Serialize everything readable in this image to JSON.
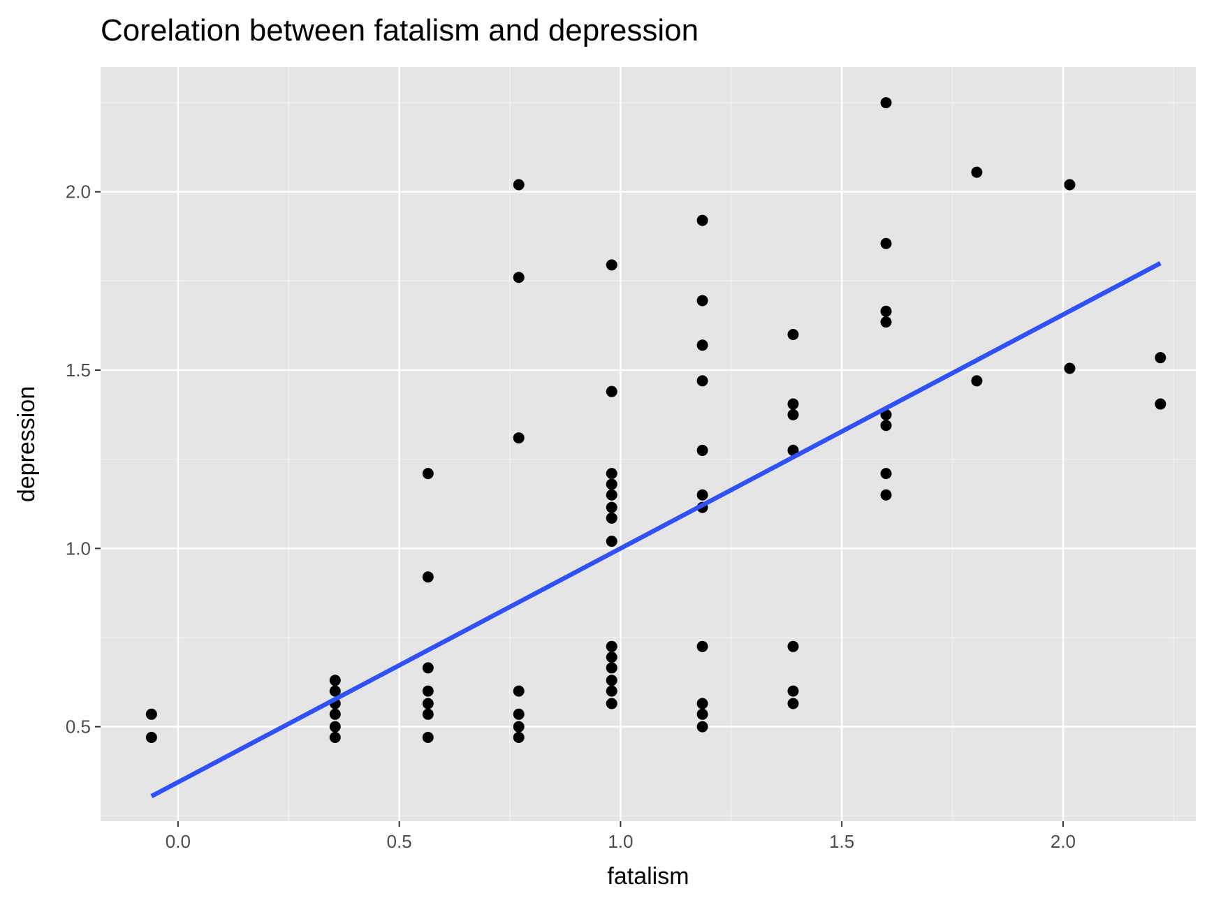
{
  "chart_data": {
    "type": "scatter",
    "title": "Corelation between fatalism and depression",
    "xlabel": "fatalism",
    "ylabel": "depression",
    "xlim": [
      -0.175,
      2.3
    ],
    "ylim": [
      0.235,
      2.35
    ],
    "x_ticks": [
      0.0,
      0.5,
      1.0,
      1.5,
      2.0
    ],
    "x_tick_labels": [
      "0.0",
      "0.5",
      "1.0",
      "1.5",
      "2.0"
    ],
    "y_ticks": [
      0.5,
      1.0,
      1.5,
      2.0
    ],
    "y_tick_labels": [
      "0.5",
      "1.0",
      "1.5",
      "2.0"
    ],
    "x_minor_ticks": [
      -0.25,
      0.25,
      0.75,
      1.25,
      1.75,
      2.25
    ],
    "y_minor_ticks": [
      0.25,
      0.75,
      1.25,
      1.75,
      2.25
    ],
    "grid": true,
    "colors": {
      "panel_background": "#e5e5e5",
      "grid_major": "#ffffff",
      "grid_minor": "#f2f2f2",
      "points": "#000000",
      "fit_line": "#3050f8",
      "text": "#000000",
      "tick_text": "#4d4d4d"
    },
    "points": [
      {
        "x": -0.06,
        "y": 0.535
      },
      {
        "x": -0.06,
        "y": 0.47
      },
      {
        "x": 0.355,
        "y": 0.63
      },
      {
        "x": 0.355,
        "y": 0.6
      },
      {
        "x": 0.355,
        "y": 0.565
      },
      {
        "x": 0.355,
        "y": 0.535
      },
      {
        "x": 0.355,
        "y": 0.5
      },
      {
        "x": 0.355,
        "y": 0.47
      },
      {
        "x": 0.565,
        "y": 1.21
      },
      {
        "x": 0.565,
        "y": 0.92
      },
      {
        "x": 0.565,
        "y": 0.665
      },
      {
        "x": 0.565,
        "y": 0.6
      },
      {
        "x": 0.565,
        "y": 0.565
      },
      {
        "x": 0.565,
        "y": 0.535
      },
      {
        "x": 0.565,
        "y": 0.47
      },
      {
        "x": 0.77,
        "y": 2.02
      },
      {
        "x": 0.77,
        "y": 1.76
      },
      {
        "x": 0.77,
        "y": 1.31
      },
      {
        "x": 0.77,
        "y": 0.6
      },
      {
        "x": 0.77,
        "y": 0.535
      },
      {
        "x": 0.77,
        "y": 0.5
      },
      {
        "x": 0.77,
        "y": 0.47
      },
      {
        "x": 0.98,
        "y": 1.795
      },
      {
        "x": 0.98,
        "y": 1.44
      },
      {
        "x": 0.98,
        "y": 1.21
      },
      {
        "x": 0.98,
        "y": 1.18
      },
      {
        "x": 0.98,
        "y": 1.15
      },
      {
        "x": 0.98,
        "y": 1.115
      },
      {
        "x": 0.98,
        "y": 1.085
      },
      {
        "x": 0.98,
        "y": 1.02
      },
      {
        "x": 0.98,
        "y": 0.725
      },
      {
        "x": 0.98,
        "y": 0.695
      },
      {
        "x": 0.98,
        "y": 0.665
      },
      {
        "x": 0.98,
        "y": 0.63
      },
      {
        "x": 0.98,
        "y": 0.6
      },
      {
        "x": 0.98,
        "y": 0.565
      },
      {
        "x": 1.185,
        "y": 1.92
      },
      {
        "x": 1.185,
        "y": 1.695
      },
      {
        "x": 1.185,
        "y": 1.57
      },
      {
        "x": 1.185,
        "y": 1.47
      },
      {
        "x": 1.185,
        "y": 1.275
      },
      {
        "x": 1.185,
        "y": 1.15
      },
      {
        "x": 1.185,
        "y": 1.115
      },
      {
        "x": 1.185,
        "y": 0.725
      },
      {
        "x": 1.185,
        "y": 0.565
      },
      {
        "x": 1.185,
        "y": 0.535
      },
      {
        "x": 1.185,
        "y": 0.5
      },
      {
        "x": 1.39,
        "y": 1.6
      },
      {
        "x": 1.39,
        "y": 1.405
      },
      {
        "x": 1.39,
        "y": 1.375
      },
      {
        "x": 1.39,
        "y": 1.275
      },
      {
        "x": 1.39,
        "y": 0.725
      },
      {
        "x": 1.39,
        "y": 0.6
      },
      {
        "x": 1.39,
        "y": 0.565
      },
      {
        "x": 1.6,
        "y": 2.25
      },
      {
        "x": 1.6,
        "y": 1.855
      },
      {
        "x": 1.6,
        "y": 1.665
      },
      {
        "x": 1.6,
        "y": 1.635
      },
      {
        "x": 1.6,
        "y": 1.375
      },
      {
        "x": 1.6,
        "y": 1.345
      },
      {
        "x": 1.6,
        "y": 1.21
      },
      {
        "x": 1.6,
        "y": 1.15
      },
      {
        "x": 1.805,
        "y": 2.055
      },
      {
        "x": 1.805,
        "y": 1.47
      },
      {
        "x": 2.015,
        "y": 2.02
      },
      {
        "x": 2.015,
        "y": 1.505
      },
      {
        "x": 2.22,
        "y": 1.535
      },
      {
        "x": 2.22,
        "y": 1.405
      }
    ],
    "fit_line": [
      {
        "x": -0.06,
        "y": 0.305
      },
      {
        "x": 2.22,
        "y": 1.8
      }
    ]
  }
}
